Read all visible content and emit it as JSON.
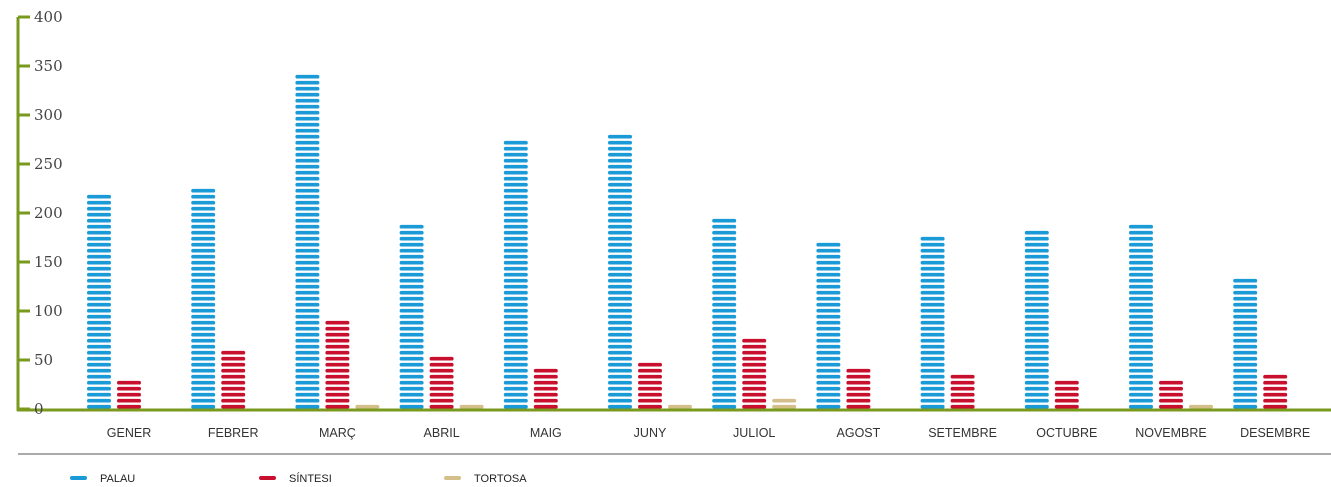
{
  "chart_data": {
    "type": "bar",
    "categories": [
      "GENER",
      "FEBRER",
      "MARÇ",
      "ABRIL",
      "MAIG",
      "JUNY",
      "JULIOL",
      "AGOST",
      "SETEMBRE",
      "OCTUBRE",
      "NOVEMBRE",
      "DESEMBRE"
    ],
    "series": [
      {
        "name": "PALAU",
        "color": "#1a9ad6",
        "values": [
          220,
          226,
          345,
          189,
          276,
          282,
          195,
          170,
          177,
          183,
          189,
          133
        ]
      },
      {
        "name": "SÍNTESI",
        "color": "#c8102e",
        "values": [
          33,
          64,
          95,
          58,
          45,
          52,
          77,
          45,
          39,
          33,
          33,
          39
        ]
      },
      {
        "name": "TORTOSA",
        "color": "#d4bf8a",
        "values": [
          0,
          0,
          7,
          7,
          0,
          7,
          14,
          0,
          0,
          0,
          7,
          0
        ]
      }
    ],
    "ylim": [
      0,
      400
    ],
    "yticks": [
      "0",
      "50",
      "100",
      "150",
      "200",
      "250",
      "300",
      "350",
      "400"
    ],
    "axis_color": "#7a9a1e",
    "legend_position": "bottom-left",
    "grid": false
  }
}
